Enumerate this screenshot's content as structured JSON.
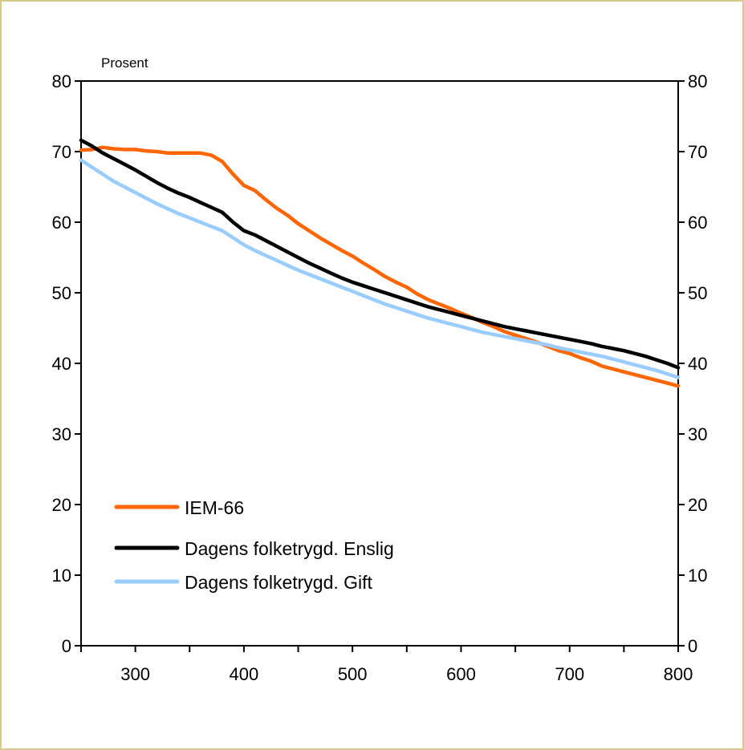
{
  "chart_data": {
    "type": "line",
    "ylabel_left": "Prosent",
    "xlim": [
      250,
      800
    ],
    "ylim": [
      0,
      80
    ],
    "x_ticks": [
      300,
      400,
      500,
      600,
      700,
      800
    ],
    "y_ticks": [
      0,
      10,
      20,
      30,
      40,
      50,
      60,
      70,
      80
    ],
    "grid": false,
    "legend_position": "bottom-left",
    "x": [
      250,
      260,
      270,
      280,
      290,
      300,
      310,
      320,
      330,
      340,
      350,
      360,
      370,
      380,
      390,
      400,
      410,
      420,
      430,
      440,
      450,
      460,
      470,
      480,
      490,
      500,
      510,
      520,
      530,
      540,
      550,
      560,
      570,
      580,
      590,
      600,
      610,
      620,
      630,
      640,
      650,
      660,
      670,
      680,
      690,
      700,
      710,
      720,
      730,
      740,
      750,
      760,
      770,
      780,
      790,
      800
    ],
    "series": [
      {
        "name": "IEM-66",
        "color": "#ff6600",
        "values": [
          70.2,
          70.3,
          70.6,
          70.4,
          70.3,
          70.3,
          70.1,
          70.0,
          69.8,
          69.8,
          69.8,
          69.8,
          69.5,
          68.6,
          66.8,
          65.2,
          64.5,
          63.2,
          62.0,
          61.0,
          59.8,
          58.8,
          57.8,
          56.9,
          56.0,
          55.2,
          54.2,
          53.3,
          52.3,
          51.5,
          50.8,
          49.8,
          49.0,
          48.4,
          47.8,
          47.1,
          46.5,
          45.8,
          45.2,
          44.5,
          44.0,
          43.5,
          43.0,
          42.4,
          41.8,
          41.4,
          40.8,
          40.3,
          39.6,
          39.2,
          38.8,
          38.4,
          38.0,
          37.6,
          37.2,
          36.8
        ]
      },
      {
        "name": "Dagens folketrygd. Enslig",
        "color": "#000000",
        "values": [
          71.6,
          70.8,
          69.8,
          69.0,
          68.2,
          67.4,
          66.5,
          65.6,
          64.8,
          64.1,
          63.5,
          62.8,
          62.1,
          61.4,
          60.0,
          58.8,
          58.2,
          57.4,
          56.6,
          55.8,
          55.0,
          54.2,
          53.5,
          52.8,
          52.1,
          51.5,
          51.0,
          50.5,
          50.0,
          49.5,
          49.0,
          48.5,
          48.0,
          47.6,
          47.2,
          46.8,
          46.4,
          46.0,
          45.6,
          45.2,
          44.9,
          44.6,
          44.3,
          44.0,
          43.7,
          43.4,
          43.1,
          42.8,
          42.4,
          42.1,
          41.8,
          41.4,
          41.0,
          40.5,
          40.0,
          39.4
        ]
      },
      {
        "name": "Dagens folketrygd. Gift",
        "color": "#99ccff",
        "values": [
          68.8,
          67.8,
          66.8,
          65.8,
          65.0,
          64.2,
          63.4,
          62.6,
          61.9,
          61.2,
          60.6,
          60.0,
          59.4,
          58.8,
          57.8,
          56.8,
          56.0,
          55.3,
          54.6,
          53.9,
          53.2,
          52.6,
          52.0,
          51.4,
          50.8,
          50.2,
          49.6,
          49.0,
          48.4,
          47.9,
          47.4,
          46.9,
          46.4,
          46.0,
          45.6,
          45.2,
          44.8,
          44.4,
          44.1,
          43.8,
          43.5,
          43.2,
          42.9,
          42.6,
          42.2,
          41.9,
          41.6,
          41.3,
          41.0,
          40.6,
          40.2,
          39.8,
          39.4,
          39.0,
          38.5,
          38.0
        ]
      }
    ]
  }
}
